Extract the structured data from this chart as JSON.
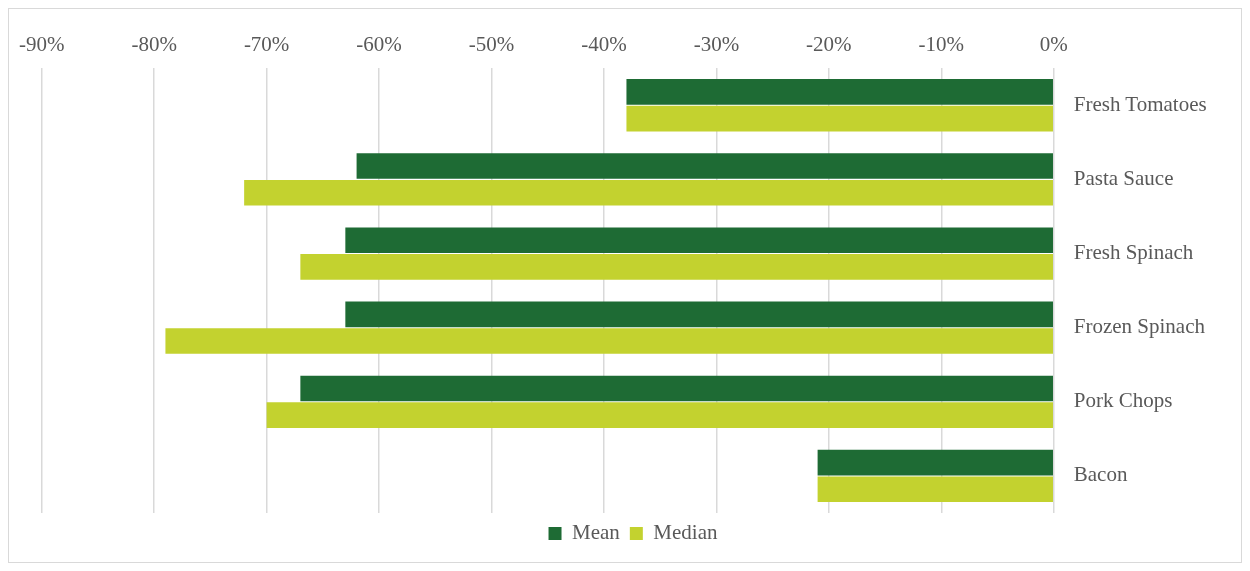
{
  "chart_data": {
    "type": "bar",
    "orientation": "horizontal",
    "categories": [
      "Fresh Tomatoes",
      "Pasta Sauce",
      "Fresh Spinach",
      "Frozen Spinach",
      "Pork Chops",
      "Bacon"
    ],
    "series": [
      {
        "name": "Mean",
        "color": "#1e6b34",
        "values": [
          -38,
          -62,
          -63,
          -63,
          -67,
          -21
        ]
      },
      {
        "name": "Median",
        "color": "#c3d22f",
        "values": [
          -38,
          -72,
          -67,
          -79,
          -70,
          -21
        ]
      }
    ],
    "xlim": [
      -90,
      0
    ],
    "xticks": [
      {
        "value": -90,
        "label": "-90%"
      },
      {
        "value": -80,
        "label": "-80%"
      },
      {
        "value": -70,
        "label": "-70%"
      },
      {
        "value": -60,
        "label": "-60%"
      },
      {
        "value": -50,
        "label": "-50%"
      },
      {
        "value": -40,
        "label": "-40%"
      },
      {
        "value": -30,
        "label": "-30%"
      },
      {
        "value": -20,
        "label": "-20%"
      },
      {
        "value": -10,
        "label": "-10%"
      },
      {
        "value": 0,
        "label": "0%"
      }
    ],
    "grid": "x",
    "legend": "bottom"
  }
}
